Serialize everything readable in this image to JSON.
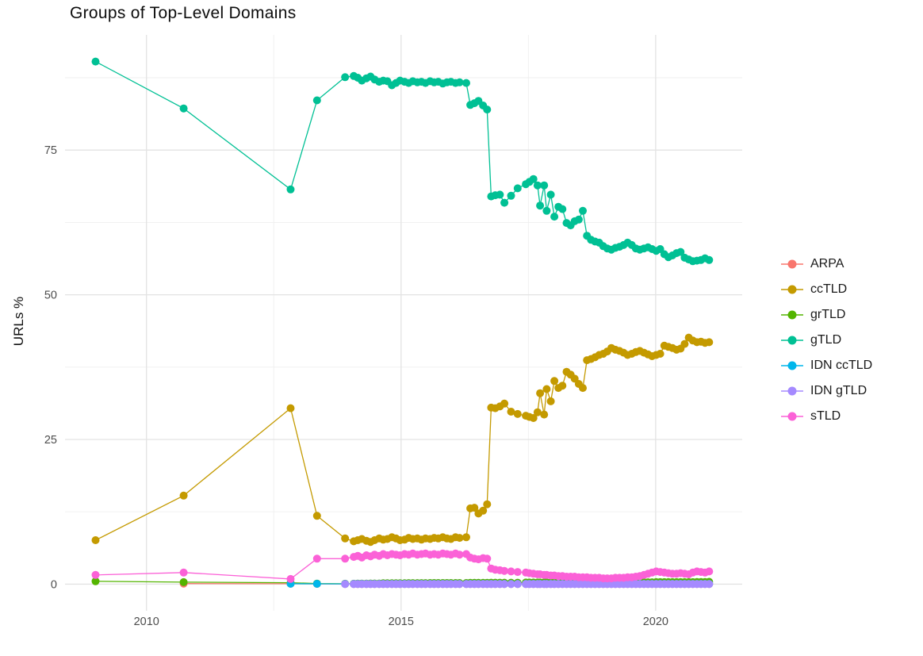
{
  "title": "Groups of Top-Level Domains",
  "chart_data": {
    "type": "line",
    "title": "Groups of Top-Level Domains",
    "xlabel": "",
    "ylabel": "URLs %",
    "legend_position": "right",
    "grid": true,
    "background": "#ffffff",
    "major_grid_color": "#e3e3e3",
    "minor_grid_color": "#efefef",
    "tick_label_color": "#4d4d4d",
    "xlim": [
      2008.4,
      2021.7
    ],
    "ylim": [
      -4.6,
      94.9
    ],
    "x_ticks": [
      2010,
      2015,
      2020
    ],
    "x_tick_labels": [
      "2010",
      "2015",
      "2020"
    ],
    "x_minor_ticks": [
      2012.5,
      2017.5
    ],
    "y_ticks": [
      0,
      25,
      50,
      75
    ],
    "y_tick_labels": [
      "0",
      "25",
      "50",
      "75"
    ],
    "y_minor_ticks": [
      12.5,
      37.5,
      62.5,
      87.5
    ],
    "x": [
      2009.0,
      2010.73,
      2012.83,
      2013.35,
      2013.9,
      2014.07,
      2014.15,
      2014.23,
      2014.32,
      2014.4,
      2014.48,
      2014.57,
      2014.65,
      2014.73,
      2014.82,
      2014.9,
      2014.98,
      2015.07,
      2015.15,
      2015.23,
      2015.32,
      2015.4,
      2015.48,
      2015.57,
      2015.65,
      2015.73,
      2015.82,
      2015.9,
      2015.98,
      2016.07,
      2016.15,
      2016.28,
      2016.36,
      2016.44,
      2016.52,
      2016.61,
      2016.69,
      2016.77,
      2016.85,
      2016.94,
      2017.03,
      2017.16,
      2017.29,
      2017.45,
      2017.52,
      2017.6,
      2017.68,
      2017.73,
      2017.81,
      2017.86,
      2017.94,
      2018.01,
      2018.09,
      2018.17,
      2018.25,
      2018.33,
      2018.41,
      2018.49,
      2018.57,
      2018.65,
      2018.73,
      2018.81,
      2018.89,
      2018.97,
      2019.05,
      2019.13,
      2019.21,
      2019.29,
      2019.37,
      2019.45,
      2019.53,
      2019.61,
      2019.69,
      2019.77,
      2019.85,
      2019.93,
      2020.01,
      2020.09,
      2020.17,
      2020.25,
      2020.33,
      2020.41,
      2020.49,
      2020.57,
      2020.65,
      2020.73,
      2020.81,
      2020.89,
      2020.97,
      2021.05
    ],
    "series": [
      {
        "name": "ARPA",
        "color": "#F8766D",
        "values": [
          null,
          0.1,
          0.08,
          0.05,
          0.03,
          0.03,
          0.03,
          0.03,
          0.03,
          0.03,
          0.03,
          0.03,
          0.03,
          0.03,
          0.03,
          0.03,
          0.03,
          0.03,
          0.03,
          0.03,
          0.03,
          0.03,
          0.03,
          0.03,
          0.03,
          0.03,
          0.03,
          0.03,
          0.03,
          0.03,
          0.03,
          0.03,
          0.03,
          0.03,
          0.03,
          0.03,
          0.03,
          0.03,
          0.03,
          0.03,
          0.03,
          0.03,
          0.03,
          0.03,
          0.03,
          0.03,
          0.03,
          0.03,
          0.03,
          0.03,
          0.03,
          0.03,
          0.03,
          0.03,
          0.03,
          0.03,
          0.03,
          0.03,
          0.03,
          0.03,
          0.03,
          0.03,
          0.03,
          0.03,
          0.03,
          0.03,
          0.03,
          0.03,
          0.03,
          0.03,
          0.03,
          0.03,
          0.03,
          0.03,
          0.03,
          0.03,
          0.03,
          0.03,
          0.03,
          0.03,
          0.03,
          0.03,
          0.03,
          0.03,
          0.03,
          0.03,
          0.03,
          0.03,
          0.03,
          0.03
        ]
      },
      {
        "name": "ccTLD",
        "color": "#C49A00",
        "values": [
          7.6,
          15.3,
          30.4,
          11.8,
          7.9,
          7.4,
          7.6,
          7.8,
          7.5,
          7.3,
          7.6,
          7.9,
          7.7,
          7.8,
          8.1,
          7.9,
          7.6,
          7.7,
          8.0,
          7.8,
          7.9,
          7.7,
          7.9,
          7.8,
          8.0,
          7.9,
          8.1,
          7.9,
          7.8,
          8.1,
          8.0,
          8.1,
          13.1,
          13.2,
          12.2,
          12.7,
          13.8,
          30.5,
          30.4,
          30.7,
          31.2,
          29.8,
          29.4,
          29.1,
          28.9,
          28.7,
          29.7,
          33.0,
          29.3,
          33.7,
          31.6,
          35.1,
          33.9,
          34.3,
          36.7,
          36.2,
          35.5,
          34.6,
          33.9,
          38.7,
          38.9,
          39.2,
          39.6,
          39.8,
          40.2,
          40.8,
          40.5,
          40.3,
          40.0,
          39.6,
          39.8,
          40.1,
          40.3,
          40.0,
          39.7,
          39.4,
          39.6,
          39.8,
          41.2,
          41.0,
          40.8,
          40.5,
          40.7,
          41.5,
          42.6,
          42.1,
          41.8,
          41.9,
          41.7,
          41.8
        ]
      },
      {
        "name": "grTLD",
        "color": "#53B400",
        "values": [
          0.5,
          0.35,
          0.25,
          0.1,
          0.08,
          0.08,
          0.1,
          0.1,
          0.1,
          0.12,
          0.12,
          0.12,
          0.15,
          0.15,
          0.15,
          0.15,
          0.15,
          0.15,
          0.18,
          0.18,
          0.18,
          0.18,
          0.18,
          0.2,
          0.2,
          0.2,
          0.2,
          0.2,
          0.2,
          0.2,
          0.2,
          0.2,
          0.22,
          0.22,
          0.22,
          0.22,
          0.22,
          0.25,
          0.25,
          0.25,
          0.25,
          0.25,
          0.25,
          0.28,
          0.28,
          0.28,
          0.28,
          0.28,
          0.28,
          0.28,
          0.28,
          0.3,
          0.3,
          0.3,
          0.3,
          0.3,
          0.3,
          0.3,
          0.3,
          0.3,
          0.3,
          0.3,
          0.3,
          0.3,
          0.32,
          0.32,
          0.32,
          0.32,
          0.32,
          0.32,
          0.32,
          0.32,
          0.32,
          0.32,
          0.32,
          0.32,
          0.35,
          0.35,
          0.35,
          0.35,
          0.35,
          0.35,
          0.35,
          0.35,
          0.35,
          0.35,
          0.38,
          0.38,
          0.38,
          0.4
        ]
      },
      {
        "name": "gTLD",
        "color": "#00C094",
        "values": [
          90.3,
          82.2,
          68.2,
          83.6,
          87.6,
          87.8,
          87.5,
          87.0,
          87.4,
          87.7,
          87.2,
          86.8,
          87.0,
          86.9,
          86.2,
          86.6,
          87.0,
          86.8,
          86.6,
          86.9,
          86.7,
          86.8,
          86.6,
          86.9,
          86.7,
          86.8,
          86.5,
          86.7,
          86.8,
          86.6,
          86.7,
          86.6,
          82.8,
          83.1,
          83.5,
          82.7,
          82.0,
          67.0,
          67.2,
          67.3,
          65.9,
          67.1,
          68.4,
          69.1,
          69.5,
          70.0,
          68.9,
          65.4,
          68.9,
          64.5,
          67.3,
          63.5,
          65.2,
          64.8,
          62.4,
          62.0,
          62.7,
          63.0,
          64.5,
          60.2,
          59.5,
          59.2,
          59.0,
          58.4,
          58.0,
          57.8,
          58.1,
          58.3,
          58.6,
          59.0,
          58.6,
          58.0,
          57.8,
          58.0,
          58.2,
          57.9,
          57.6,
          57.9,
          57.0,
          56.5,
          56.8,
          57.2,
          57.4,
          56.4,
          56.1,
          55.8,
          55.9,
          56.0,
          56.3,
          56.0
        ]
      },
      {
        "name": "IDN ccTLD",
        "color": "#00B6EB",
        "values": [
          null,
          null,
          0.08,
          0.06,
          0.05,
          0.05,
          0.05,
          0.05,
          0.05,
          0.05,
          0.05,
          0.05,
          0.05,
          0.05,
          0.05,
          0.05,
          0.05,
          0.05,
          0.05,
          0.05,
          0.05,
          0.05,
          0.05,
          0.05,
          0.05,
          0.05,
          0.05,
          0.05,
          0.05,
          0.05,
          0.05,
          0.05,
          0.05,
          0.05,
          0.05,
          0.05,
          0.05,
          0.05,
          0.05,
          0.05,
          0.05,
          0.05,
          0.05,
          0.05,
          0.05,
          0.05,
          0.05,
          0.05,
          0.05,
          0.05,
          0.05,
          0.05,
          0.05,
          0.05,
          0.05,
          0.05,
          0.05,
          0.05,
          0.05,
          0.05,
          0.05,
          0.05,
          0.05,
          0.05,
          0.05,
          0.05,
          0.05,
          0.05,
          0.05,
          0.05,
          0.05,
          0.05,
          0.05,
          0.05,
          0.05,
          0.05,
          0.05,
          0.05,
          0.05,
          0.05,
          0.05,
          0.05,
          0.05,
          0.05,
          0.05,
          0.05,
          0.05,
          0.05,
          0.05,
          0.05
        ]
      },
      {
        "name": "IDN gTLD",
        "color": "#A58AFF",
        "values": [
          null,
          null,
          null,
          null,
          0.02,
          0.02,
          0.02,
          0.02,
          0.02,
          0.02,
          0.02,
          0.02,
          0.02,
          0.02,
          0.02,
          0.02,
          0.02,
          0.02,
          0.02,
          0.02,
          0.02,
          0.02,
          0.02,
          0.02,
          0.02,
          0.02,
          0.02,
          0.02,
          0.02,
          0.02,
          0.02,
          0.02,
          0.02,
          0.02,
          0.02,
          0.02,
          0.02,
          0.02,
          0.02,
          0.02,
          0.02,
          0.02,
          0.02,
          0.02,
          0.02,
          0.02,
          0.02,
          0.02,
          0.02,
          0.02,
          0.02,
          0.02,
          0.02,
          0.02,
          0.02,
          0.02,
          0.02,
          0.02,
          0.02,
          0.02,
          0.02,
          0.02,
          0.02,
          0.02,
          0.02,
          0.02,
          0.02,
          0.02,
          0.02,
          0.02,
          0.02,
          0.02,
          0.02,
          0.02,
          0.02,
          0.02,
          0.02,
          0.02,
          0.02,
          0.02,
          0.02,
          0.02,
          0.02,
          0.02,
          0.02,
          0.02,
          0.02,
          0.02,
          0.02,
          0.02
        ]
      },
      {
        "name": "sTLD",
        "color": "#FB61D7",
        "values": [
          1.6,
          2.0,
          0.9,
          4.4,
          4.4,
          4.7,
          4.9,
          4.6,
          5.0,
          4.8,
          5.1,
          4.9,
          5.2,
          5.0,
          5.2,
          5.1,
          5.0,
          5.2,
          5.1,
          5.3,
          5.1,
          5.2,
          5.3,
          5.1,
          5.2,
          5.1,
          5.3,
          5.2,
          5.1,
          5.3,
          5.1,
          5.2,
          4.6,
          4.4,
          4.3,
          4.5,
          4.4,
          2.7,
          2.5,
          2.4,
          2.3,
          2.2,
          2.1,
          2.0,
          1.9,
          1.8,
          1.7,
          1.7,
          1.6,
          1.6,
          1.5,
          1.5,
          1.4,
          1.4,
          1.3,
          1.3,
          1.3,
          1.2,
          1.2,
          1.2,
          1.1,
          1.1,
          1.1,
          1.0,
          1.0,
          1.0,
          1.1,
          1.1,
          1.1,
          1.2,
          1.2,
          1.3,
          1.4,
          1.6,
          1.8,
          2.0,
          2.2,
          2.1,
          2.0,
          1.9,
          1.8,
          1.8,
          1.9,
          1.8,
          1.7,
          2.0,
          2.2,
          2.1,
          2.0,
          2.2
        ]
      }
    ]
  }
}
